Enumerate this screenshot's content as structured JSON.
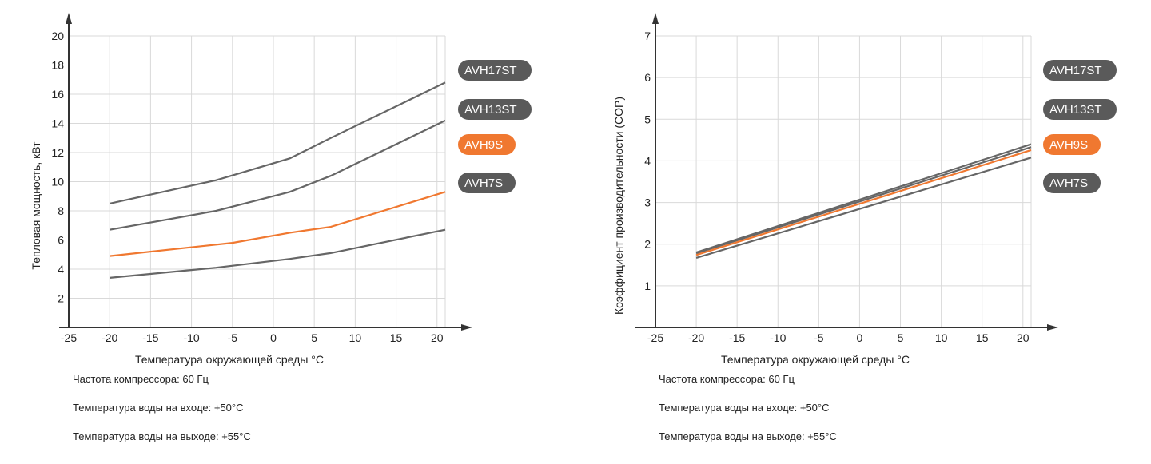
{
  "chart_data": [
    {
      "type": "line",
      "title": "",
      "xlabel": "Температура окружающей среды °C",
      "ylabel": "Тепловая мощность, кВт",
      "xlim": [
        -25,
        21
      ],
      "ylim": [
        0,
        20
      ],
      "x_ticks": [
        -25,
        -20,
        -15,
        -10,
        -5,
        0,
        5,
        10,
        15,
        20
      ],
      "y_ticks": [
        2,
        4,
        6,
        8,
        10,
        12,
        14,
        16,
        18,
        20
      ],
      "grid": true,
      "legend_position": "right",
      "series": [
        {
          "name": "AVH17ST",
          "color": "#666666",
          "x": [
            -20,
            -7,
            2,
            7,
            21
          ],
          "y": [
            8.5,
            10.1,
            11.6,
            13.0,
            16.8
          ]
        },
        {
          "name": "AVH13ST",
          "color": "#666666",
          "x": [
            -20,
            -7,
            2,
            7,
            21
          ],
          "y": [
            6.7,
            8.0,
            9.3,
            10.4,
            14.2
          ]
        },
        {
          "name": "AVH9S",
          "color": "#f07830",
          "x": [
            -20,
            -5,
            2,
            7,
            21
          ],
          "y": [
            4.9,
            5.8,
            6.5,
            6.9,
            9.3
          ]
        },
        {
          "name": "AVH7S",
          "color": "#666666",
          "x": [
            -20,
            -7,
            2,
            7,
            21
          ],
          "y": [
            3.4,
            4.1,
            4.7,
            5.1,
            6.7
          ]
        }
      ],
      "notes": [
        "Частота компрессора: 60 Гц",
        "Температура воды на входе: +50°C",
        "Температура воды на выходе: +55°C"
      ]
    },
    {
      "type": "line",
      "title": "",
      "xlabel": "Температура окружающей среды °C",
      "ylabel": "Коэффициент производительности (COP)",
      "xlim": [
        -25,
        21
      ],
      "ylim": [
        0,
        7
      ],
      "x_ticks": [
        -25,
        -20,
        -15,
        -10,
        -5,
        0,
        5,
        10,
        15,
        20
      ],
      "y_ticks": [
        1,
        2,
        3,
        4,
        5,
        6,
        7
      ],
      "grid": true,
      "legend_position": "right",
      "series": [
        {
          "name": "AVH17ST",
          "color": "#666666",
          "x": [
            -20,
            21
          ],
          "y": [
            1.8,
            4.4
          ]
        },
        {
          "name": "AVH13ST",
          "color": "#666666",
          "x": [
            -20,
            21
          ],
          "y": [
            1.78,
            4.33
          ]
        },
        {
          "name": "AVH9S",
          "color": "#f07830",
          "x": [
            -20,
            21
          ],
          "y": [
            1.74,
            4.26
          ]
        },
        {
          "name": "AVH7S",
          "color": "#666666",
          "x": [
            -20,
            21
          ],
          "y": [
            1.67,
            4.08
          ]
        }
      ],
      "notes": [
        "Частота компрессора: 60 Гц",
        "Температура воды на входе: +50°C",
        "Температура воды на выходе: +55°C"
      ]
    }
  ]
}
